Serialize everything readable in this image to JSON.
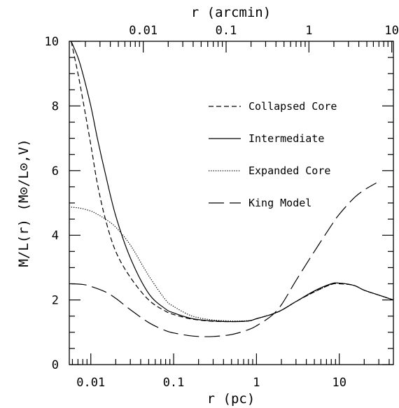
{
  "chart_data": {
    "type": "line",
    "xlabel": "r (pc)",
    "x2label": "r (arcmin)",
    "ylabel": "M/L(r)  (M⊙/L⊙,V)",
    "x_scale": "log",
    "x2_scale": "log",
    "xlim": [
      0.0055,
      45
    ],
    "ylim": [
      0,
      10
    ],
    "x_ticks": [
      {
        "value": 0.01,
        "label": "0.01"
      },
      {
        "value": 0.1,
        "label": "0.1"
      },
      {
        "value": 1,
        "label": "1"
      },
      {
        "value": 10,
        "label": "10"
      }
    ],
    "x2_ticks": [
      {
        "value": 0.01,
        "label": "0.01"
      },
      {
        "value": 0.1,
        "label": "0.1"
      },
      {
        "value": 1,
        "label": "1"
      },
      {
        "value": 10,
        "label": "10"
      }
    ],
    "y_ticks": [
      {
        "value": 0,
        "label": "0"
      },
      {
        "value": 2,
        "label": "2"
      },
      {
        "value": 4,
        "label": "4"
      },
      {
        "value": 6,
        "label": "6"
      },
      {
        "value": 8,
        "label": "8"
      },
      {
        "value": 10,
        "label": "10"
      }
    ],
    "legend_position": "right, upper half",
    "series": [
      {
        "name": "Collapsed Core",
        "style": "short-dash",
        "x": [
          0.0058,
          0.007,
          0.008,
          0.01,
          0.012,
          0.015,
          0.02,
          0.03,
          0.05,
          0.08,
          0.1,
          0.15,
          0.2,
          0.3,
          0.5,
          0.8,
          1,
          1.5,
          2,
          3,
          5,
          8,
          10,
          15,
          20,
          30,
          45
        ],
        "y": [
          10.0,
          9.0,
          8.2,
          6.8,
          5.6,
          4.5,
          3.5,
          2.7,
          2.0,
          1.65,
          1.55,
          1.43,
          1.38,
          1.34,
          1.33,
          1.35,
          1.42,
          1.55,
          1.68,
          1.95,
          2.25,
          2.48,
          2.5,
          2.45,
          2.3,
          2.15,
          2.0
        ]
      },
      {
        "name": "Intermediate",
        "style": "solid",
        "x": [
          0.0058,
          0.007,
          0.008,
          0.01,
          0.012,
          0.015,
          0.02,
          0.03,
          0.05,
          0.08,
          0.1,
          0.15,
          0.2,
          0.3,
          0.5,
          0.8,
          1,
          1.5,
          2,
          3,
          5,
          8,
          10,
          15,
          20,
          30,
          45
        ],
        "y": [
          10.0,
          9.5,
          9.0,
          8.0,
          7.0,
          5.9,
          4.6,
          3.3,
          2.2,
          1.72,
          1.6,
          1.45,
          1.39,
          1.35,
          1.33,
          1.35,
          1.42,
          1.55,
          1.68,
          1.95,
          2.28,
          2.5,
          2.52,
          2.45,
          2.3,
          2.15,
          2.0
        ]
      },
      {
        "name": "Expanded Core",
        "style": "dotted",
        "x": [
          0.0058,
          0.007,
          0.008,
          0.01,
          0.012,
          0.015,
          0.02,
          0.03,
          0.05,
          0.08,
          0.1,
          0.15,
          0.2,
          0.3,
          0.5,
          0.8,
          1,
          1.5,
          2,
          3,
          5,
          8,
          10,
          15,
          20,
          30,
          45
        ],
        "y": [
          4.87,
          4.85,
          4.82,
          4.75,
          4.65,
          4.5,
          4.25,
          3.7,
          2.75,
          2.0,
          1.8,
          1.55,
          1.45,
          1.38,
          1.35,
          1.36,
          1.42,
          1.55,
          1.68,
          1.95,
          2.25,
          2.48,
          2.52,
          2.45,
          2.3,
          2.15,
          2.0
        ]
      },
      {
        "name": "King Model",
        "style": "long-dash",
        "x": [
          0.0058,
          0.008,
          0.01,
          0.015,
          0.02,
          0.03,
          0.05,
          0.08,
          0.1,
          0.15,
          0.2,
          0.3,
          0.5,
          0.8,
          1,
          1.5,
          2,
          3,
          5,
          8,
          10,
          15,
          20,
          28
        ],
        "y": [
          2.5,
          2.48,
          2.42,
          2.25,
          2.05,
          1.7,
          1.3,
          1.05,
          0.98,
          0.9,
          0.87,
          0.87,
          0.93,
          1.08,
          1.2,
          1.5,
          1.85,
          2.6,
          3.5,
          4.3,
          4.65,
          5.15,
          5.4,
          5.62
        ]
      }
    ]
  }
}
